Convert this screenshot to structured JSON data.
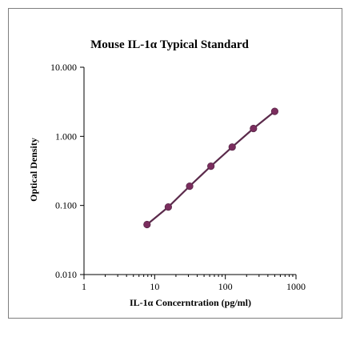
{
  "chart_data": {
    "type": "line",
    "title": "Mouse IL-1α Typical Standard",
    "xlabel": "IL-1α Concerntration (pg/ml)",
    "ylabel": "Optical Density",
    "x_scale": "log",
    "y_scale": "log",
    "xlim": [
      1,
      1000
    ],
    "ylim": [
      0.01,
      10
    ],
    "x_ticks": [
      1,
      10,
      100,
      1000
    ],
    "x_tick_labels": [
      "1",
      "10",
      "100",
      "1000"
    ],
    "y_ticks": [
      0.01,
      0.1,
      1,
      10
    ],
    "y_tick_labels": [
      "0.010",
      "0.100",
      "1.000",
      "10.000"
    ],
    "grid": false,
    "legend": "none",
    "series": [
      {
        "x": [
          7.8,
          15.6,
          31.25,
          62.5,
          125,
          250,
          500
        ],
        "y": [
          0.053,
          0.095,
          0.19,
          0.37,
          0.7,
          1.3,
          2.3
        ],
        "line_color": "#5b2a4b",
        "marker_color": "#7b2d5e"
      }
    ]
  }
}
